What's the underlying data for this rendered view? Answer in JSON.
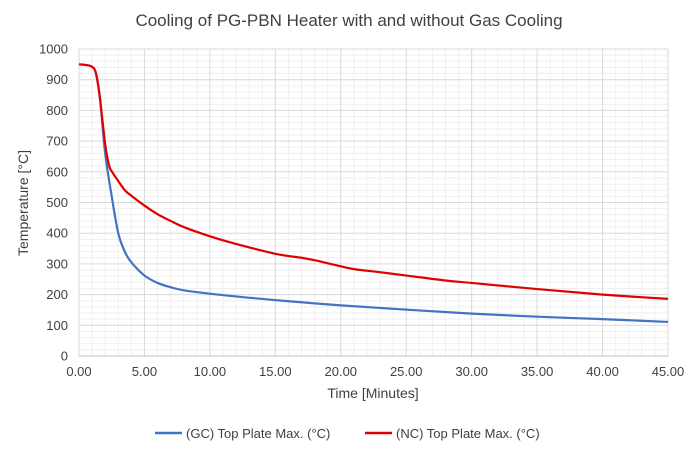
{
  "chart_data": {
    "type": "line",
    "title": "Cooling of PG-PBN Heater with and without Gas Cooling",
    "xlabel": "Time [Minutes]",
    "ylabel": "Temperature [°C]",
    "xlim": [
      0,
      45
    ],
    "ylim": [
      0,
      1000
    ],
    "x_ticks": [
      "0.00",
      "5.00",
      "10.00",
      "15.00",
      "20.00",
      "25.00",
      "30.00",
      "35.00",
      "40.00",
      "45.00"
    ],
    "y_ticks": [
      "0",
      "100",
      "200",
      "300",
      "400",
      "500",
      "600",
      "700",
      "800",
      "900",
      "1000"
    ],
    "grid": true,
    "legend_position": "bottom",
    "series": [
      {
        "name": "(GC) Top Plate Max. (°C)",
        "color": "#4472C4",
        "points": [
          [
            0,
            950
          ],
          [
            0.5,
            948
          ],
          [
            1.0,
            942
          ],
          [
            1.3,
            920
          ],
          [
            1.6,
            840
          ],
          [
            2.0,
            660
          ],
          [
            2.5,
            520
          ],
          [
            3.0,
            400
          ],
          [
            3.5,
            340
          ],
          [
            4.0,
            305
          ],
          [
            5.0,
            262
          ],
          [
            6.0,
            238
          ],
          [
            7.0,
            224
          ],
          [
            8.0,
            214
          ],
          [
            10.0,
            203
          ],
          [
            12.0,
            194
          ],
          [
            15.0,
            182
          ],
          [
            20.0,
            165
          ],
          [
            25.0,
            151
          ],
          [
            30.0,
            138
          ],
          [
            35.0,
            128
          ],
          [
            40.0,
            120
          ],
          [
            45.0,
            111
          ]
        ]
      },
      {
        "name": "(NC) Top Plate Max. (°C)",
        "color": "#E00000",
        "points": [
          [
            0,
            950
          ],
          [
            0.5,
            948
          ],
          [
            1.0,
            942
          ],
          [
            1.3,
            920
          ],
          [
            1.6,
            840
          ],
          [
            2.0,
            690
          ],
          [
            2.3,
            620
          ],
          [
            2.6,
            595
          ],
          [
            3.0,
            570
          ],
          [
            3.5,
            540
          ],
          [
            4.0,
            522
          ],
          [
            5.0,
            490
          ],
          [
            6.0,
            462
          ],
          [
            7.0,
            440
          ],
          [
            8.0,
            420
          ],
          [
            10.0,
            390
          ],
          [
            12.0,
            365
          ],
          [
            15.0,
            333
          ],
          [
            17.0,
            320
          ],
          [
            18.0,
            312
          ],
          [
            20.0,
            292
          ],
          [
            21.0,
            283
          ],
          [
            23.0,
            273
          ],
          [
            25.0,
            262
          ],
          [
            28.0,
            246
          ],
          [
            30.0,
            238
          ],
          [
            35.0,
            218
          ],
          [
            40.0,
            200
          ],
          [
            45.0,
            186
          ]
        ]
      }
    ]
  }
}
